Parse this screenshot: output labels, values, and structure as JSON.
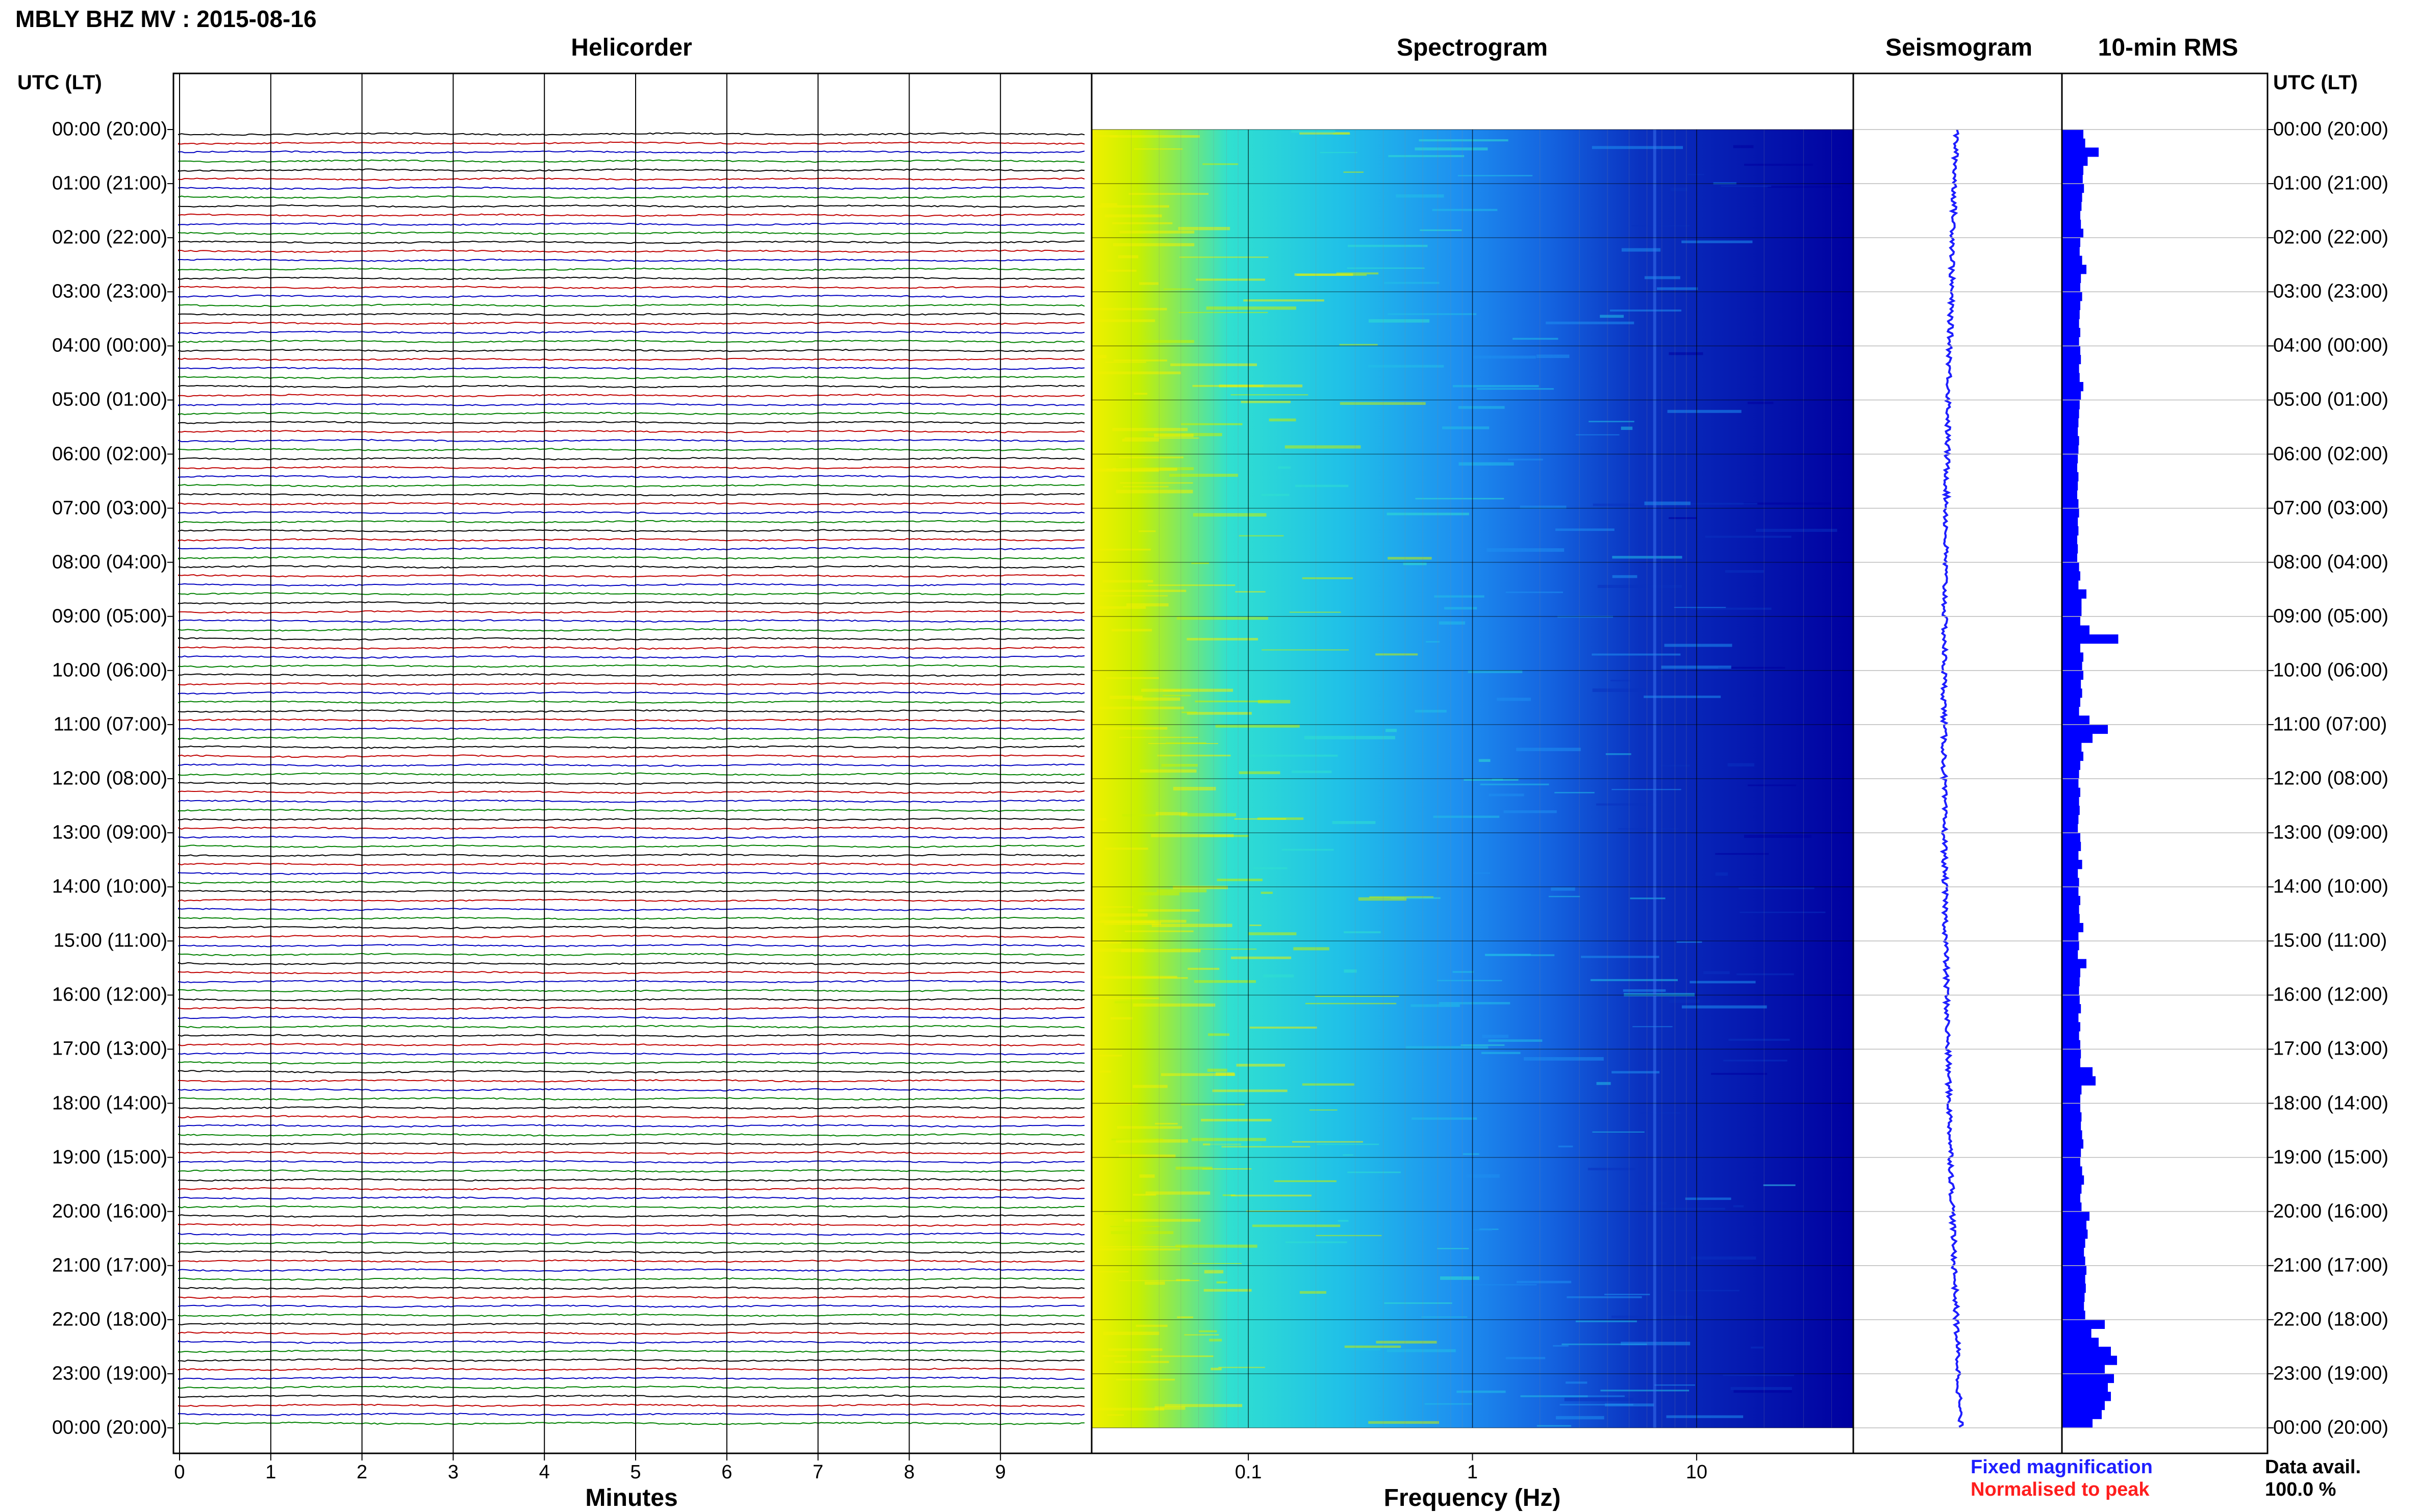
{
  "title": "MBLY BHZ MV : 2015-08-16",
  "panels": {
    "helicorder": "Helicorder",
    "spectrogram": "Spectrogram",
    "seismogram": "Seismogram",
    "rms": "10-min RMS"
  },
  "axis": {
    "time_header_left": "UTC (LT)",
    "time_header_right": "UTC (LT)",
    "minutes_label": "Minutes",
    "frequency_label": "Frequency (Hz)",
    "minutes_ticks": [
      "0",
      "1",
      "2",
      "3",
      "4",
      "5",
      "6",
      "7",
      "8",
      "9"
    ],
    "frequency_ticks": [
      "0.1",
      "1",
      "10"
    ]
  },
  "time_labels": [
    "00:00 (20:00)",
    "01:00 (21:00)",
    "02:00 (22:00)",
    "03:00 (23:00)",
    "04:00 (00:00)",
    "05:00 (01:00)",
    "06:00 (02:00)",
    "07:00 (03:00)",
    "08:00 (04:00)",
    "09:00 (05:00)",
    "10:00 (06:00)",
    "11:00 (07:00)",
    "12:00 (08:00)",
    "13:00 (09:00)",
    "14:00 (10:00)",
    "15:00 (11:00)",
    "16:00 (12:00)",
    "17:00 (13:00)",
    "18:00 (14:00)",
    "19:00 (15:00)",
    "20:00 (16:00)",
    "21:00 (17:00)",
    "22:00 (18:00)",
    "23:00 (19:00)",
    "00:00 (20:00)"
  ],
  "legend": {
    "fixed": "Fixed magnification",
    "normalised": "Normalised to peak",
    "data_avail_label": "Data avail.",
    "data_avail_value": "100.0 %"
  },
  "colors": {
    "trace_cycle": [
      "#000000",
      "#c00000",
      "#0000c0",
      "#008000"
    ],
    "seismogram": "#1e1eff",
    "rms_bar": "#0000ff",
    "grid": "#000000"
  },
  "chart_data": {
    "type": "heatmap",
    "helicorder": {
      "rows": 144,
      "minutes_per_row": 10,
      "x_range_minutes": [
        0,
        10
      ]
    },
    "spectrogram": {
      "x_scale": "log",
      "frequency_range_hz": [
        0.02,
        50
      ]
    },
    "rms_10min": {
      "values": [
        0.35,
        0.38,
        0.6,
        0.42,
        0.35,
        0.34,
        0.36,
        0.33,
        0.32,
        0.3,
        0.31,
        0.35,
        0.3,
        0.29,
        0.33,
        0.4,
        0.31,
        0.3,
        0.33,
        0.3,
        0.29,
        0.28,
        0.3,
        0.28,
        0.3,
        0.31,
        0.28,
        0.29,
        0.35,
        0.31,
        0.29,
        0.28,
        0.27,
        0.26,
        0.28,
        0.27,
        0.26,
        0.25,
        0.27,
        0.26,
        0.25,
        0.27,
        0.28,
        0.26,
        0.27,
        0.25,
        0.26,
        0.25,
        0.28,
        0.3,
        0.27,
        0.4,
        0.32,
        0.32,
        0.3,
        0.45,
        0.92,
        0.3,
        0.35,
        0.33,
        0.35,
        0.31,
        0.33,
        0.3,
        0.28,
        0.45,
        0.75,
        0.5,
        0.32,
        0.35,
        0.3,
        0.28,
        0.27,
        0.3,
        0.28,
        0.29,
        0.27,
        0.26,
        0.3,
        0.31,
        0.27,
        0.33,
        0.26,
        0.28,
        0.27,
        0.3,
        0.28,
        0.29,
        0.35,
        0.27,
        0.28,
        0.26,
        0.4,
        0.3,
        0.29,
        0.28,
        0.29,
        0.31,
        0.27,
        0.3,
        0.28,
        0.3,
        0.31,
        0.3,
        0.5,
        0.55,
        0.32,
        0.3,
        0.3,
        0.32,
        0.31,
        0.33,
        0.35,
        0.31,
        0.3,
        0.33,
        0.36,
        0.32,
        0.3,
        0.32,
        0.45,
        0.4,
        0.42,
        0.38,
        0.36,
        0.38,
        0.4,
        0.38,
        0.39,
        0.37,
        0.36,
        0.38,
        0.7,
        0.48,
        0.6,
        0.8,
        0.9,
        0.7,
        0.85,
        0.75,
        0.8,
        0.7,
        0.65,
        0.5
      ]
    }
  }
}
